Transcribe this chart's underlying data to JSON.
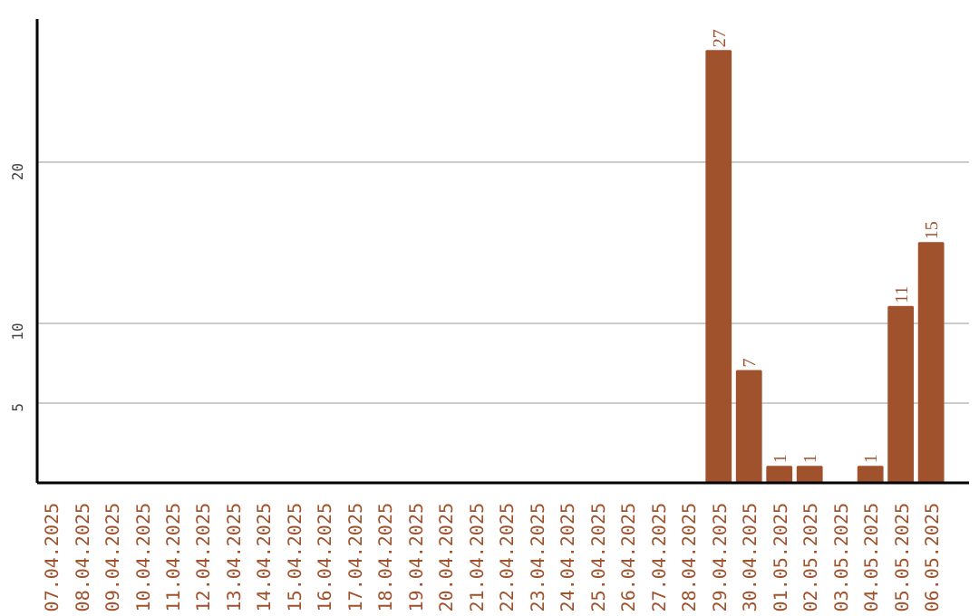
{
  "chart_data": {
    "type": "bar",
    "categories": [
      "07.04.2025",
      "08.04.2025",
      "09.04.2025",
      "10.04.2025",
      "11.04.2025",
      "12.04.2025",
      "13.04.2025",
      "14.04.2025",
      "15.04.2025",
      "16.04.2025",
      "17.04.2025",
      "18.04.2025",
      "19.04.2025",
      "20.04.2025",
      "21.04.2025",
      "22.04.2025",
      "23.04.2025",
      "24.04.2025",
      "25.04.2025",
      "26.04.2025",
      "27.04.2025",
      "28.04.2025",
      "29.04.2025",
      "30.04.2025",
      "01.05.2025",
      "02.05.2025",
      "03.05.2025",
      "04.05.2025",
      "05.05.2025",
      "06.05.2025"
    ],
    "values": [
      0,
      0,
      0,
      0,
      0,
      0,
      0,
      0,
      0,
      0,
      0,
      0,
      0,
      0,
      0,
      0,
      0,
      0,
      0,
      0,
      0,
      0,
      27,
      7,
      1,
      1,
      0,
      1,
      11,
      15
    ],
    "value_labels": [
      null,
      null,
      null,
      null,
      null,
      null,
      null,
      null,
      null,
      null,
      null,
      null,
      null,
      null,
      null,
      null,
      null,
      null,
      null,
      null,
      null,
      null,
      "27",
      "7",
      "1",
      "1",
      null,
      "1",
      "11",
      "15"
    ],
    "color": "#a0522d",
    "ylim": [
      0,
      29
    ],
    "yticks": [
      5,
      10,
      20
    ],
    "grid": "y"
  }
}
